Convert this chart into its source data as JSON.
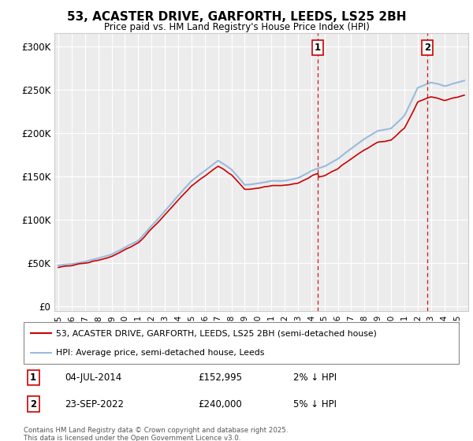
{
  "title": "53, ACASTER DRIVE, GARFORTH, LEEDS, LS25 2BH",
  "subtitle": "Price paid vs. HM Land Registry's House Price Index (HPI)",
  "ylabel_ticks": [
    "£0",
    "£50K",
    "£100K",
    "£150K",
    "£200K",
    "£250K",
    "£300K"
  ],
  "ytick_values": [
    0,
    50000,
    100000,
    150000,
    200000,
    250000,
    300000
  ],
  "ylim": [
    -5000,
    315000
  ],
  "xlim_start": 1994.7,
  "xlim_end": 2025.8,
  "hpi_color": "#99bbdd",
  "price_color": "#cc0000",
  "vline_color": "#cc0000",
  "marker1_date": 2014.5,
  "marker2_date": 2022.72,
  "legend_line1": "53, ACASTER DRIVE, GARFORTH, LEEDS, LS25 2BH (semi-detached house)",
  "legend_line2": "HPI: Average price, semi-detached house, Leeds",
  "annotation1_label": "1",
  "annotation1_date": "04-JUL-2014",
  "annotation1_price": "£152,995",
  "annotation1_note": "2% ↓ HPI",
  "annotation2_label": "2",
  "annotation2_date": "23-SEP-2022",
  "annotation2_price": "£240,000",
  "annotation2_note": "5% ↓ HPI",
  "footer": "Contains HM Land Registry data © Crown copyright and database right 2025.\nThis data is licensed under the Open Government Licence v3.0.",
  "background_color": "#ffffff",
  "plot_bg_color": "#ececec"
}
